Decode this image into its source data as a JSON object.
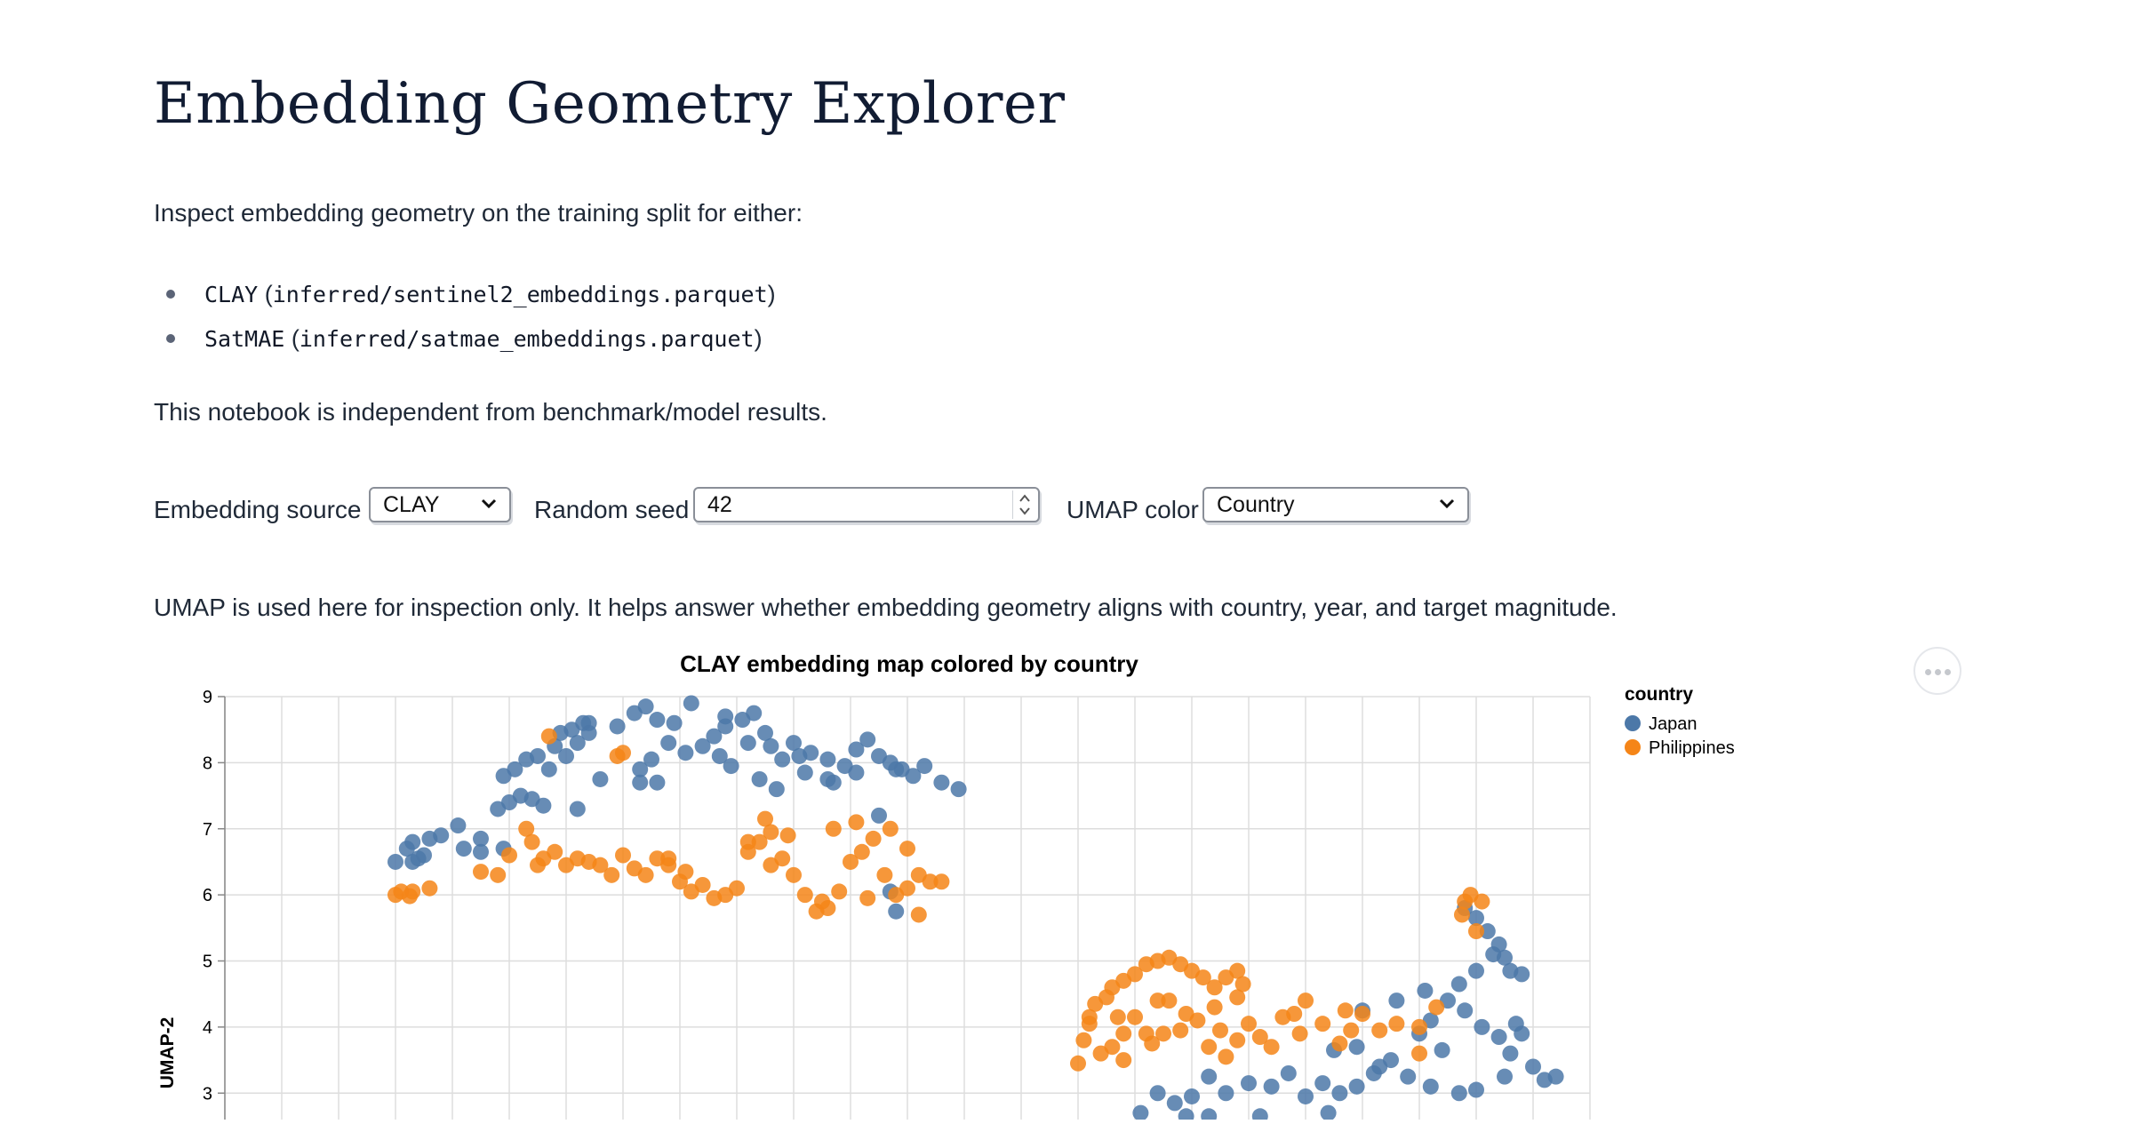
{
  "page": {
    "title": "Embedding Geometry Explorer",
    "intro": "Inspect embedding geometry on the training split for either:",
    "models": [
      {
        "name": "CLAY",
        "path": "inferred/sentinel2_embeddings.parquet"
      },
      {
        "name": "SatMAE",
        "path": "inferred/satmae_embeddings.parquet"
      }
    ],
    "note": "This notebook is independent from benchmark/model results.",
    "umap_note": "UMAP is used here for inspection only. It helps answer whether embedding geometry aligns with country, year, and target magnitude."
  },
  "controls": {
    "source_label": "Embedding source",
    "source_value": "CLAY",
    "seed_label": "Random seed",
    "seed_value": "42",
    "color_label": "UMAP color",
    "color_value": "Country"
  },
  "icons": {
    "select_chevron": "chevron-down-icon",
    "spinner": "spinner-arrows-icon",
    "chart_menu": "more-horizontal-icon"
  },
  "chart_data": {
    "type": "scatter",
    "title": "CLAY embedding map colored by country",
    "xlabel": "",
    "ylabel": "UMAP-2",
    "ylim": [
      2.6,
      9
    ],
    "yticks": [
      3,
      4,
      5,
      6,
      7,
      8,
      9
    ],
    "xlim": [
      0,
      24
    ],
    "grid": true,
    "legend": {
      "title": "country",
      "position": "right"
    },
    "series": [
      {
        "name": "Japan",
        "color": "#4c78a8",
        "points": [
          [
            3,
            6.5
          ],
          [
            3.2,
            6.7
          ],
          [
            3.3,
            6.8
          ],
          [
            3.5,
            6.6
          ],
          [
            3.6,
            6.85
          ],
          [
            3.4,
            6.55
          ],
          [
            3.8,
            6.9
          ],
          [
            4.1,
            7.05
          ],
          [
            4.5,
            6.85
          ],
          [
            4.2,
            6.7
          ],
          [
            4.8,
            7.3
          ],
          [
            5,
            7.4
          ],
          [
            5.2,
            7.5
          ],
          [
            5.4,
            7.45
          ],
          [
            4.9,
            7.8
          ],
          [
            5.1,
            7.9
          ],
          [
            5.3,
            8.05
          ],
          [
            5.5,
            8.1
          ],
          [
            5.8,
            8.25
          ],
          [
            5.9,
            8.45
          ],
          [
            6.1,
            8.5
          ],
          [
            6.2,
            8.3
          ],
          [
            6.4,
            8.45
          ],
          [
            6.3,
            8.6
          ],
          [
            6.6,
            7.75
          ],
          [
            6.2,
            7.3
          ],
          [
            5.6,
            7.35
          ],
          [
            6.9,
            8.55
          ],
          [
            7.2,
            8.75
          ],
          [
            7.4,
            8.85
          ],
          [
            7.6,
            8.65
          ],
          [
            7.9,
            8.6
          ],
          [
            8.2,
            8.9
          ],
          [
            7.8,
            8.3
          ],
          [
            7.5,
            8.05
          ],
          [
            7.3,
            7.9
          ],
          [
            7.6,
            7.7
          ],
          [
            8.1,
            8.15
          ],
          [
            8.4,
            8.25
          ],
          [
            8.6,
            8.4
          ],
          [
            8.7,
            8.1
          ],
          [
            8.8,
            8.55
          ],
          [
            9.1,
            8.65
          ],
          [
            9.3,
            8.75
          ],
          [
            9.5,
            8.45
          ],
          [
            9.2,
            8.3
          ],
          [
            9.6,
            8.25
          ],
          [
            9.8,
            8.05
          ],
          [
            10,
            8.3
          ],
          [
            10.3,
            8.15
          ],
          [
            10.6,
            8.05
          ],
          [
            10.9,
            7.95
          ],
          [
            11.1,
            8.2
          ],
          [
            11.3,
            8.35
          ],
          [
            11.5,
            8.1
          ],
          [
            11.7,
            8.0
          ],
          [
            11.9,
            7.9
          ],
          [
            12.3,
            7.95
          ],
          [
            12.6,
            7.7
          ],
          [
            12.9,
            7.6
          ],
          [
            8.8,
            8.7
          ],
          [
            8.9,
            7.95
          ],
          [
            9.4,
            7.75
          ],
          [
            9.7,
            7.6
          ],
          [
            10.6,
            7.75
          ],
          [
            10.2,
            7.85
          ],
          [
            11.1,
            7.85
          ],
          [
            11.8,
            7.9
          ],
          [
            11.5,
            7.2
          ],
          [
            12.1,
            7.8
          ],
          [
            11.7,
            6.05
          ],
          [
            11.8,
            5.75
          ],
          [
            4.9,
            6.7
          ],
          [
            3.3,
            6.5
          ],
          [
            10.7,
            7.7
          ],
          [
            10.1,
            8.1
          ],
          [
            6.4,
            8.6
          ],
          [
            4.5,
            6.65
          ],
          [
            7.3,
            7.7
          ],
          [
            5.7,
            7.9
          ],
          [
            6.0,
            8.1
          ],
          [
            21.8,
            5.8
          ],
          [
            22.0,
            5.65
          ],
          [
            22.2,
            5.45
          ],
          [
            22.4,
            5.25
          ],
          [
            22.5,
            5.05
          ],
          [
            22.6,
            4.85
          ],
          [
            22.8,
            4.8
          ],
          [
            22.0,
            4.85
          ],
          [
            21.7,
            4.65
          ],
          [
            21.5,
            4.4
          ],
          [
            21.2,
            4.1
          ],
          [
            21.0,
            3.9
          ],
          [
            21.8,
            4.25
          ],
          [
            22.1,
            4.0
          ],
          [
            22.4,
            3.85
          ],
          [
            22.6,
            3.6
          ],
          [
            22.8,
            3.9
          ],
          [
            23.0,
            3.4
          ],
          [
            23.2,
            3.2
          ],
          [
            22.5,
            3.25
          ],
          [
            22.0,
            3.05
          ],
          [
            21.7,
            3.0
          ],
          [
            21.2,
            3.1
          ],
          [
            20.8,
            3.25
          ],
          [
            20.5,
            3.5
          ],
          [
            20.2,
            3.3
          ],
          [
            19.9,
            3.1
          ],
          [
            19.6,
            3.0
          ],
          [
            19.3,
            3.15
          ],
          [
            19.0,
            2.95
          ],
          [
            18.7,
            3.3
          ],
          [
            18.4,
            3.1
          ],
          [
            18.0,
            3.15
          ],
          [
            17.6,
            3.0
          ],
          [
            17.3,
            3.25
          ],
          [
            17.0,
            2.95
          ],
          [
            16.7,
            2.85
          ],
          [
            16.4,
            3.0
          ],
          [
            16.1,
            2.7
          ],
          [
            17.3,
            2.65
          ],
          [
            16.9,
            2.65
          ],
          [
            18.2,
            2.65
          ],
          [
            19.4,
            2.7
          ],
          [
            20.3,
            3.4
          ],
          [
            21.4,
            3.65
          ],
          [
            22.3,
            5.1
          ],
          [
            22.7,
            4.05
          ],
          [
            23.4,
            3.25
          ],
          [
            19.5,
            3.65
          ],
          [
            20.6,
            4.4
          ],
          [
            19.9,
            3.7
          ],
          [
            20.0,
            4.25
          ],
          [
            21.1,
            4.55
          ]
        ]
      },
      {
        "name": "Philippines",
        "color": "#f58518",
        "points": [
          [
            3,
            6.0
          ],
          [
            3.1,
            6.05
          ],
          [
            3.3,
            6.05
          ],
          [
            3.6,
            6.1
          ],
          [
            4.5,
            6.35
          ],
          [
            4.8,
            6.3
          ],
          [
            5,
            6.6
          ],
          [
            5.3,
            7.0
          ],
          [
            5.4,
            6.8
          ],
          [
            5.6,
            6.55
          ],
          [
            5.8,
            6.65
          ],
          [
            6,
            6.45
          ],
          [
            6.2,
            6.55
          ],
          [
            6.4,
            6.5
          ],
          [
            6.6,
            6.45
          ],
          [
            6.8,
            6.3
          ],
          [
            7.0,
            6.6
          ],
          [
            7.2,
            6.4
          ],
          [
            7.4,
            6.3
          ],
          [
            7.6,
            6.55
          ],
          [
            7.8,
            6.45
          ],
          [
            8.0,
            6.2
          ],
          [
            8.2,
            6.05
          ],
          [
            8.4,
            6.15
          ],
          [
            8.6,
            5.95
          ],
          [
            8.8,
            6.0
          ],
          [
            9.0,
            6.1
          ],
          [
            9.2,
            6.65
          ],
          [
            9.4,
            6.8
          ],
          [
            9.6,
            6.95
          ],
          [
            9.8,
            6.55
          ],
          [
            10.0,
            6.3
          ],
          [
            10.2,
            6.0
          ],
          [
            10.4,
            5.75
          ],
          [
            10.6,
            5.8
          ],
          [
            10.8,
            6.05
          ],
          [
            11.0,
            6.5
          ],
          [
            11.2,
            6.65
          ],
          [
            11.4,
            6.85
          ],
          [
            11.6,
            6.3
          ],
          [
            11.8,
            6.0
          ],
          [
            12.0,
            6.1
          ],
          [
            12.2,
            6.3
          ],
          [
            12.4,
            6.2
          ],
          [
            12.6,
            6.2
          ],
          [
            12.2,
            5.7
          ],
          [
            11.3,
            5.95
          ],
          [
            10.5,
            5.9
          ],
          [
            9.2,
            6.8
          ],
          [
            9.5,
            7.15
          ],
          [
            9.9,
            6.9
          ],
          [
            10.7,
            7.0
          ],
          [
            11.1,
            7.1
          ],
          [
            11.7,
            7.0
          ],
          [
            12.0,
            6.7
          ],
          [
            5.7,
            8.4
          ],
          [
            6.9,
            8.1
          ],
          [
            7.0,
            8.15
          ],
          [
            7.8,
            6.55
          ],
          [
            8.1,
            6.35
          ],
          [
            5.5,
            6.45
          ],
          [
            9.6,
            6.45
          ],
          [
            3.25,
            5.98
          ],
          [
            15.0,
            3.45
          ],
          [
            15.1,
            3.8
          ],
          [
            15.2,
            4.15
          ],
          [
            15.3,
            4.35
          ],
          [
            15.5,
            4.45
          ],
          [
            15.6,
            4.6
          ],
          [
            15.8,
            4.7
          ],
          [
            16.0,
            4.8
          ],
          [
            16.2,
            4.95
          ],
          [
            16.4,
            5.0
          ],
          [
            16.6,
            5.05
          ],
          [
            16.8,
            4.95
          ],
          [
            17.0,
            4.85
          ],
          [
            17.2,
            4.75
          ],
          [
            17.4,
            4.6
          ],
          [
            17.6,
            4.75
          ],
          [
            17.8,
            4.85
          ],
          [
            17.9,
            4.65
          ],
          [
            17.4,
            4.3
          ],
          [
            17.1,
            4.1
          ],
          [
            16.8,
            3.95
          ],
          [
            16.5,
            3.9
          ],
          [
            16.2,
            3.9
          ],
          [
            16.0,
            4.15
          ],
          [
            15.8,
            3.9
          ],
          [
            15.6,
            3.7
          ],
          [
            15.4,
            3.6
          ],
          [
            15.8,
            3.5
          ],
          [
            16.6,
            4.4
          ],
          [
            16.9,
            4.2
          ],
          [
            17.3,
            3.7
          ],
          [
            17.6,
            3.55
          ],
          [
            17.8,
            3.8
          ],
          [
            18.0,
            4.05
          ],
          [
            18.2,
            3.85
          ],
          [
            18.4,
            3.7
          ],
          [
            18.6,
            4.15
          ],
          [
            18.8,
            4.2
          ],
          [
            19.0,
            4.4
          ],
          [
            19.3,
            4.05
          ],
          [
            19.6,
            3.75
          ],
          [
            19.8,
            3.95
          ],
          [
            20.0,
            4.2
          ],
          [
            20.3,
            3.95
          ],
          [
            20.6,
            4.05
          ],
          [
            21.0,
            4.0
          ],
          [
            21.3,
            4.3
          ],
          [
            21.0,
            3.6
          ],
          [
            15.7,
            4.15
          ],
          [
            16.4,
            4.4
          ],
          [
            17.8,
            4.45
          ],
          [
            18.9,
            3.9
          ],
          [
            21.8,
            5.9
          ],
          [
            21.9,
            6.0
          ],
          [
            22.1,
            5.9
          ],
          [
            21.75,
            5.7
          ],
          [
            22.0,
            5.45
          ],
          [
            16.3,
            3.75
          ],
          [
            17.5,
            3.95
          ],
          [
            19.7,
            4.25
          ],
          [
            15.2,
            4.05
          ]
        ]
      }
    ]
  }
}
